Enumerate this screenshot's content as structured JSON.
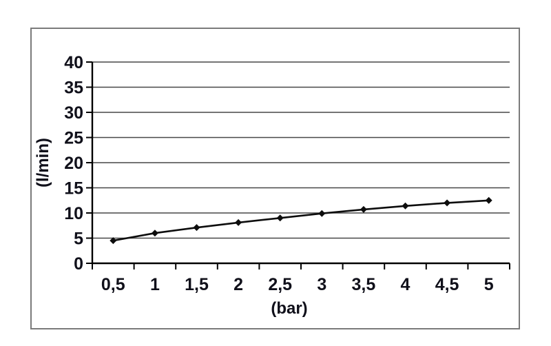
{
  "figure": {
    "frame_color": "#7a7a7a",
    "background": "#ffffff"
  },
  "chart_data": {
    "type": "line",
    "title": "",
    "xlabel": "(bar)",
    "ylabel": "(l/min)",
    "x": [
      0.5,
      1,
      1.5,
      2,
      2.5,
      3,
      3.5,
      4,
      4.5,
      5
    ],
    "x_tick_labels": [
      "0,5",
      "1",
      "1,5",
      "2",
      "2,5",
      "3",
      "3,5",
      "4",
      "4,5",
      "5"
    ],
    "values": [
      4.5,
      6.0,
      7.1,
      8.1,
      9.0,
      9.9,
      10.7,
      11.4,
      12.0,
      12.5
    ],
    "ylim": [
      0,
      40
    ],
    "y_tick_step": 5,
    "y_tick_labels": [
      "0",
      "5",
      "10",
      "15",
      "20",
      "25",
      "30",
      "35",
      "40"
    ],
    "grid": true,
    "legend_position": "none",
    "line_color": "#0d0d0d",
    "marker": "diamond",
    "grid_color": "#474747",
    "axis_color": "#000000",
    "text_color": "#10101a"
  }
}
